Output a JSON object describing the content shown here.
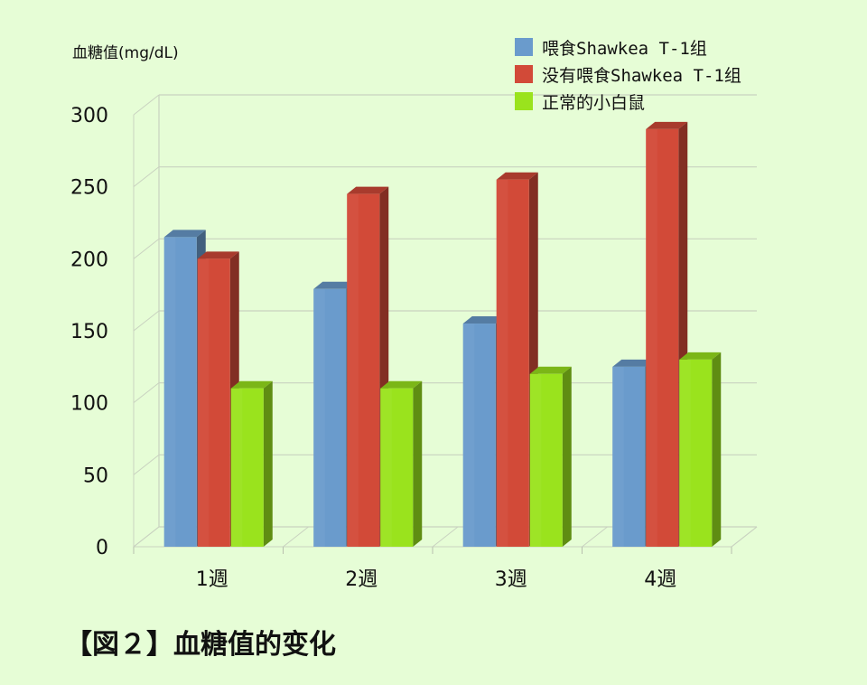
{
  "chart_data": {
    "type": "bar",
    "ylabel": "血糖值(mg/dL)",
    "categories": [
      "1週",
      "2週",
      "3週",
      "4週"
    ],
    "series": [
      {
        "name": "喂食Shawkea T-1组",
        "values": [
          215,
          179,
          155,
          125
        ],
        "color": "#6a9bcc"
      },
      {
        "name": "没有喂食Shawkea T-1组",
        "values": [
          200,
          245,
          255,
          290
        ],
        "color": "#d24a38"
      },
      {
        "name": "正常的小白鼠",
        "values": [
          110,
          110,
          120,
          130
        ],
        "color": "#9ae31d"
      }
    ],
    "yticks": [
      0,
      50,
      100,
      150,
      200,
      250,
      300
    ],
    "ylim": [
      0,
      300
    ],
    "grid": true,
    "legend_position": "top-right"
  },
  "caption": "【図２】血糖值的变化"
}
